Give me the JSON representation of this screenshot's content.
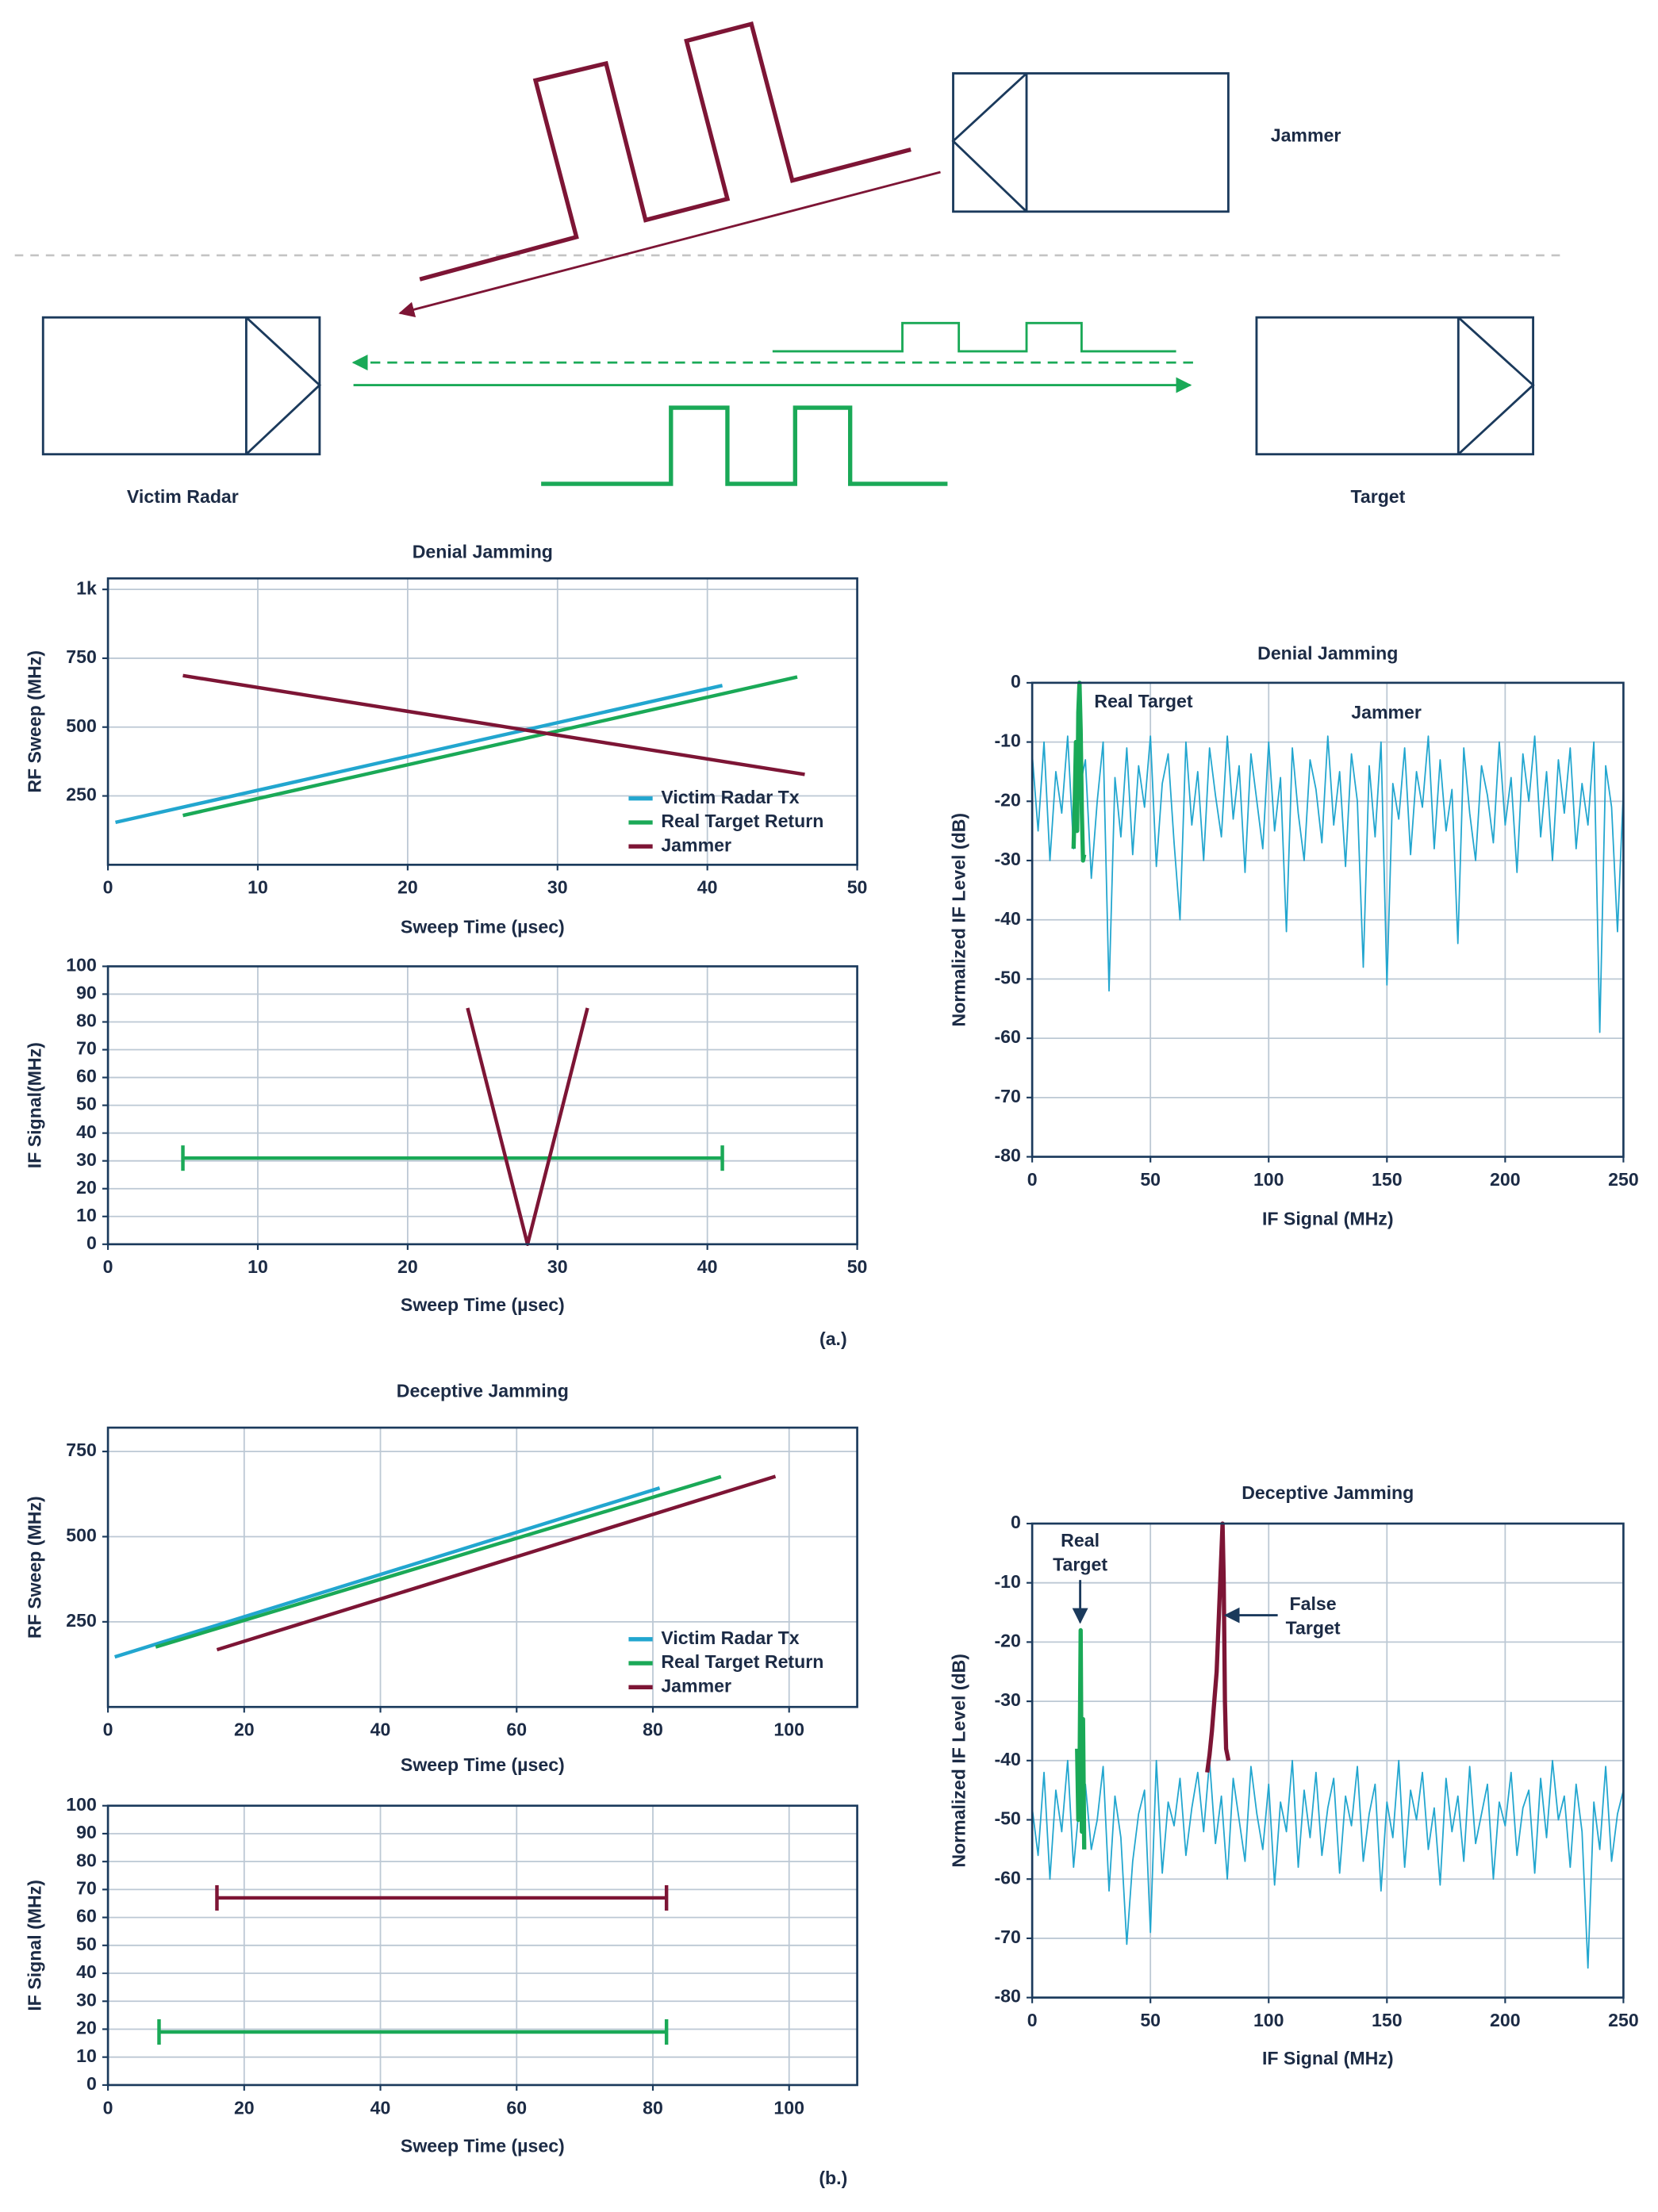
{
  "diagram": {
    "jammer": "Jammer",
    "victim_radar": "Victim Radar",
    "target": "Target"
  },
  "panel_labels": [
    "(a.)",
    "(b.)"
  ],
  "chart_data": [
    {
      "type": "line",
      "title": "Denial Jamming",
      "x_label": "Sweep Time (µsec)",
      "y_label": "RF Sweep (MHz)",
      "xlim": [
        0,
        50
      ],
      "xticks": [
        0,
        10,
        20,
        30,
        40,
        50
      ],
      "ylim": [
        0,
        1040
      ],
      "yticks": [
        250,
        500,
        750,
        {
          "value": 1000,
          "label": "1k"
        }
      ],
      "grid": true,
      "legend": "lower right",
      "series": [
        {
          "name": "Victim Radar Tx",
          "color": "#22a6cf",
          "x": [
            0.5,
            41
          ],
          "values": [
            154,
            651
          ]
        },
        {
          "name": "Real Target Return",
          "color": "#1aa957",
          "x": [
            5,
            46
          ],
          "values": [
            179,
            682
          ]
        },
        {
          "name": "Jammer",
          "color": "#7d1535",
          "x": [
            5,
            46.5
          ],
          "values": [
            687,
            328
          ]
        }
      ]
    },
    {
      "type": "line",
      "x_label": "Sweep Time (µsec)",
      "y_label": "IF Signal(MHz)",
      "xlim": [
        0,
        50
      ],
      "xticks": [
        0,
        10,
        20,
        30,
        40,
        50
      ],
      "ylim": [
        0,
        100
      ],
      "yticks": [
        0,
        10,
        20,
        30,
        40,
        50,
        60,
        70,
        80,
        90,
        100
      ],
      "grid": true,
      "series": [
        {
          "color": "#1aa957",
          "x": [
            5,
            41
          ],
          "values": [
            31,
            31
          ],
          "end_caps": true
        },
        {
          "color": "#7d1535",
          "x": [
            24,
            28,
            32
          ],
          "values": [
            85,
            0,
            85
          ]
        }
      ]
    },
    {
      "type": "line",
      "title": "Denial Jamming",
      "x_label": "IF Signal (MHz)",
      "y_label": "Normalized IF Level (dB)",
      "xlim": [
        0,
        250
      ],
      "xticks": [
        0,
        50,
        100,
        150,
        200,
        250
      ],
      "ylim": [
        -80,
        0
      ],
      "yticks": [
        -80,
        -70,
        -60,
        -50,
        -40,
        -30,
        -20,
        -10,
        0
      ],
      "grid": true,
      "annotations": [
        {
          "text": "Real Target"
        },
        {
          "text": "Jammer"
        }
      ],
      "series": [
        {
          "color": "#22a6cf",
          "x": [
            0,
            2.5,
            5,
            7.5,
            10,
            12.5,
            15,
            17.5,
            20,
            22.5,
            25,
            27.5,
            30,
            32.5,
            35,
            37.5,
            40,
            42.5,
            45,
            47.5,
            50,
            52.5,
            55,
            57.5,
            60,
            62.5,
            65,
            67.5,
            70,
            72.5,
            75,
            77.5,
            80,
            82.5,
            85,
            87.5,
            90,
            92.5,
            95,
            97.5,
            100,
            102.5,
            105,
            107.5,
            110,
            112.5,
            115,
            117.5,
            120,
            122.5,
            125,
            127.5,
            130,
            132.5,
            135,
            137.5,
            140,
            142.5,
            145,
            147.5,
            150,
            152.5,
            155,
            157.5,
            160,
            162.5,
            165,
            167.5,
            170,
            172.5,
            175,
            177.5,
            180,
            182.5,
            185,
            187.5,
            190,
            192.5,
            195,
            197.5,
            200,
            202.5,
            205,
            207.5,
            210,
            212.5,
            215,
            217.5,
            220,
            222.5,
            225,
            227.5,
            230,
            232.5,
            235,
            237.5,
            240,
            242.5,
            245,
            247.5,
            250
          ],
          "values": [
            -12,
            -25,
            -10,
            -30,
            -15,
            -22,
            -9,
            -28,
            -18,
            -13,
            -33,
            -20,
            -10,
            -52,
            -16,
            -26,
            -11,
            -29,
            -14,
            -21,
            -9,
            -31,
            -17,
            -12,
            -27,
            -40,
            -10,
            -24,
            -15,
            -30,
            -11,
            -19,
            -26,
            -9,
            -23,
            -14,
            -32,
            -12,
            -20,
            -28,
            -10,
            -25,
            -16,
            -42,
            -11,
            -22,
            -30,
            -13,
            -18,
            -27,
            -9,
            -24,
            -15,
            -31,
            -12,
            -20,
            -48,
            -14,
            -26,
            -10,
            -51,
            -17,
            -23,
            -11,
            -29,
            -15,
            -21,
            -9,
            -28,
            -13,
            -25,
            -18,
            -44,
            -11,
            -22,
            -30,
            -14,
            -19,
            -27,
            -10,
            -24,
            -16,
            -32,
            -12,
            -20,
            -9,
            -26,
            -15,
            -30,
            -13,
            -22,
            -11,
            -28,
            -17,
            -24,
            -10,
            -59,
            -14,
            -21,
            -42,
            -18
          ]
        },
        {
          "color": "#1aa957",
          "x": [
            17.5,
            18,
            18.5,
            19,
            19.5,
            20,
            20.5,
            21,
            21.5,
            22
          ],
          "values": [
            -28,
            -20,
            -10,
            -25,
            -5,
            0,
            -8,
            -22,
            -30,
            -29
          ]
        }
      ]
    },
    {
      "type": "line",
      "title": "Deceptive Jamming",
      "x_label": "Sweep Time (µsec)",
      "y_label": "RF Sweep (MHz)",
      "xlim": [
        0,
        110
      ],
      "xticks": [
        0,
        20,
        40,
        60,
        80,
        100
      ],
      "ylim": [
        0,
        820
      ],
      "yticks": [
        250,
        500,
        750
      ],
      "grid": true,
      "legend": "lower right",
      "series": [
        {
          "name": "Victim Radar Tx",
          "color": "#22a6cf",
          "x": [
            1,
            81
          ],
          "values": [
            147,
            643
          ]
        },
        {
          "name": "Real Target Return",
          "color": "#1aa957",
          "x": [
            7,
            90
          ],
          "values": [
            176,
            676
          ]
        },
        {
          "name": "Jammer",
          "color": "#7d1535",
          "x": [
            16,
            98
          ],
          "values": [
            168,
            677
          ]
        }
      ]
    },
    {
      "type": "line",
      "x_label": "Sweep Time (µsec)",
      "y_label": "IF Signal (MHz)",
      "xlim": [
        0,
        110
      ],
      "xticks": [
        0,
        20,
        40,
        60,
        80,
        100
      ],
      "ylim": [
        0,
        100
      ],
      "yticks": [
        0,
        10,
        20,
        30,
        40,
        50,
        60,
        70,
        80,
        90,
        100
      ],
      "grid": true,
      "series": [
        {
          "color": "#7d1535",
          "x": [
            16,
            82
          ],
          "values": [
            67,
            67
          ],
          "end_caps": true
        },
        {
          "color": "#1aa957",
          "x": [
            7.5,
            82
          ],
          "values": [
            19,
            19
          ],
          "end_caps": true
        }
      ]
    },
    {
      "type": "line",
      "title": "Deceptive Jamming",
      "x_label": "IF Signal (MHz)",
      "y_label": "Normalized IF Level (dB)",
      "xlim": [
        0,
        250
      ],
      "xticks": [
        0,
        50,
        100,
        150,
        200,
        250
      ],
      "ylim": [
        -80,
        0
      ],
      "yticks": [
        -80,
        -70,
        -60,
        -50,
        -40,
        -30,
        -20,
        -10,
        0
      ],
      "grid": true,
      "annotations": [
        {
          "lines": [
            "Real",
            "Target"
          ]
        },
        {
          "lines": [
            "False",
            "Target"
          ]
        }
      ],
      "series": [
        {
          "color": "#22a6cf",
          "x": [
            0,
            2.5,
            5,
            7.5,
            10,
            12.5,
            15,
            17.5,
            20,
            22.5,
            25,
            27.5,
            30,
            32.5,
            35,
            37.5,
            40,
            42.5,
            45,
            47.5,
            50,
            52.5,
            55,
            57.5,
            60,
            62.5,
            65,
            67.5,
            70,
            72.5,
            75,
            77.5,
            80,
            82.5,
            85,
            87.5,
            90,
            92.5,
            95,
            97.5,
            100,
            102.5,
            105,
            107.5,
            110,
            112.5,
            115,
            117.5,
            120,
            122.5,
            125,
            127.5,
            130,
            132.5,
            135,
            137.5,
            140,
            142.5,
            145,
            147.5,
            150,
            152.5,
            155,
            157.5,
            160,
            162.5,
            165,
            167.5,
            170,
            172.5,
            175,
            177.5,
            180,
            182.5,
            185,
            187.5,
            190,
            192.5,
            195,
            197.5,
            200,
            202.5,
            205,
            207.5,
            210,
            212.5,
            215,
            217.5,
            220,
            222.5,
            225,
            227.5,
            230,
            232.5,
            235,
            237.5,
            240,
            242.5,
            245,
            247.5,
            250
          ],
          "values": [
            -48,
            -56,
            -42,
            -60,
            -45,
            -52,
            -40,
            -58,
            -47,
            -44,
            -55,
            -50,
            -41,
            -62,
            -46,
            -53,
            -71,
            -57,
            -49,
            -45,
            -69,
            -40,
            -59,
            -47,
            -51,
            -43,
            -56,
            -48,
            -42,
            -52,
            -40,
            -54,
            -46,
            -60,
            -43,
            -50,
            -57,
            -41,
            -49,
            -55,
            -44,
            -61,
            -47,
            -52,
            -40,
            -58,
            -45,
            -53,
            -42,
            -56,
            -48,
            -43,
            -59,
            -46,
            -51,
            -41,
            -57,
            -49,
            -44,
            -62,
            -47,
            -53,
            -40,
            -58,
            -45,
            -50,
            -42,
            -55,
            -48,
            -61,
            -43,
            -52,
            -46,
            -57,
            -41,
            -54,
            -49,
            -44,
            -60,
            -47,
            -51,
            -42,
            -56,
            -48,
            -45,
            -59,
            -43,
            -53,
            -40,
            -50,
            -46,
            -58,
            -44,
            -52,
            -75,
            -47,
            -55,
            -41,
            -57,
            -49,
            -45
          ]
        },
        {
          "color": "#1aa957",
          "x": [
            19,
            19.5,
            20,
            20.5,
            21,
            21.5,
            22
          ],
          "values": [
            -38,
            -50,
            -44,
            -18,
            -52,
            -33,
            -55
          ]
        },
        {
          "color": "#7d1535",
          "x": [
            74,
            75,
            76,
            77,
            78,
            79,
            80,
            80.5,
            81,
            81.5,
            82,
            83
          ],
          "values": [
            -42,
            -39,
            -35,
            -30,
            -25,
            -15,
            -5,
            0,
            -10,
            -30,
            -38,
            -40
          ]
        }
      ]
    }
  ]
}
